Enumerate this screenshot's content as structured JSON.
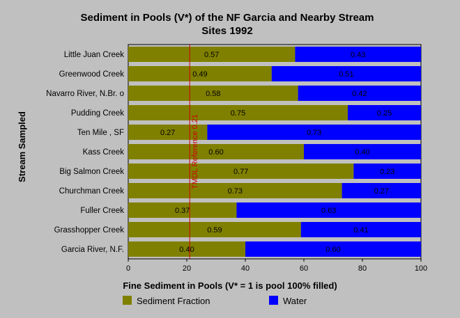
{
  "chart_data": {
    "type": "bar",
    "orientation": "horizontal",
    "stacked": true,
    "title_line1": "Sediment in Pools (V*) of the NF Garcia and Nearby Stream",
    "title_line2": "Sites 1992",
    "xlabel": "Fine Sediment in Pools (V* = 1 is pool 100% filled)",
    "ylabel": "Stream Sampled",
    "xlim": [
      0,
      100
    ],
    "xticks": [
      "0",
      "20",
      "40",
      "60",
      "80",
      "100"
    ],
    "categories": [
      "Little Juan Creek",
      "Greenwood Creek",
      "Navarro River, N.Br. o",
      "Pudding Creek",
      "Ten Mile , SF",
      "Kass Creek",
      "Big Salmon Creek",
      "Churchman Creek",
      "Fuller Creek",
      "Grasshopper Creek",
      "Garcia River, N.F."
    ],
    "series": [
      {
        "name": "Sediment Fraction",
        "color": "#808000",
        "values": [
          57,
          49,
          58,
          75,
          27,
          60,
          77,
          73,
          37,
          59,
          40
        ],
        "labels": [
          "0.57",
          "0.49",
          "0.58",
          "0.75",
          "0.27",
          "0.60",
          "0.77",
          "0.73",
          "0.37",
          "0.59",
          "0.40"
        ]
      },
      {
        "name": "Water",
        "color": "#0000ff",
        "values": [
          43,
          51,
          42,
          25,
          73,
          40,
          23,
          27,
          63,
          41,
          60
        ],
        "labels": [
          "0.43",
          "0.51",
          "0.42",
          "0.25",
          "0.73",
          "0.40",
          "0.23",
          "0.27",
          "0.63",
          "0.41",
          "0.60"
        ]
      }
    ],
    "reference_line": {
      "value": 21,
      "label": "TMDL Reference 0.21",
      "color": "#cc0000"
    },
    "grid": false,
    "legend_position": "bottom"
  }
}
